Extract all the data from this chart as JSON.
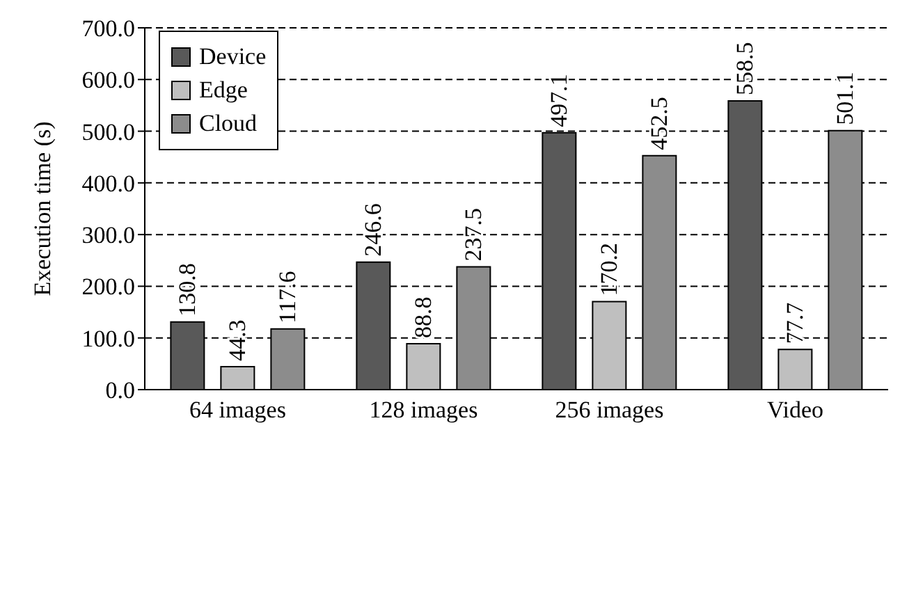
{
  "chart_data": {
    "type": "bar",
    "ylabel": "Execution time (s)",
    "categories": [
      "64 images",
      "128 images",
      "256 images",
      "Video"
    ],
    "series": [
      {
        "name": "Device",
        "color": "#595959",
        "values": [
          130.8,
          246.6,
          497.1,
          558.5
        ]
      },
      {
        "name": "Edge",
        "color": "#bfbfbf",
        "values": [
          44.3,
          88.8,
          170.2,
          77.7
        ]
      },
      {
        "name": "Cloud",
        "color": "#8c8c8c",
        "values": [
          117.6,
          237.5,
          452.5,
          501.1
        ]
      }
    ],
    "ylim": [
      0,
      700
    ],
    "yticks": [
      {
        "value": 0,
        "label": "0.0"
      },
      {
        "value": 100,
        "label": "100.0"
      },
      {
        "value": 200,
        "label": "200.0"
      },
      {
        "value": 300,
        "label": "300.0"
      },
      {
        "value": 400,
        "label": "400.0"
      },
      {
        "value": 500,
        "label": "500.0"
      },
      {
        "value": 600,
        "label": "600.0"
      },
      {
        "value": 700,
        "label": "700.0"
      }
    ],
    "grid": "y",
    "legend": "top left",
    "data_labels": true
  }
}
